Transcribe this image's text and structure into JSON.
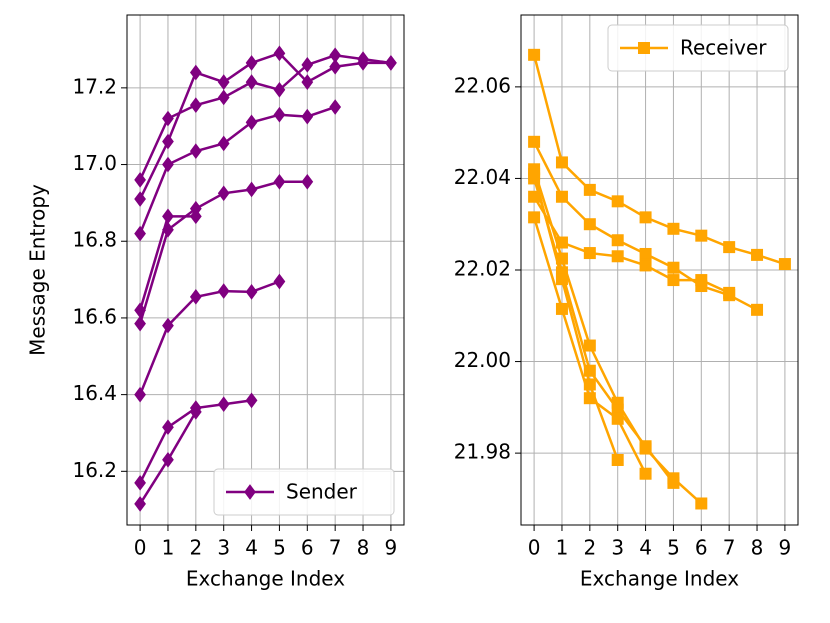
{
  "chart_data": [
    {
      "type": "line",
      "ylabel": "Message Entropy",
      "xlabel": "Exchange Index",
      "x": [
        0,
        1,
        2,
        3,
        4,
        5,
        6,
        7,
        8,
        9
      ],
      "color": "#800080",
      "marker": "diamond",
      "legend": {
        "label": "Sender",
        "loc": "lower right"
      },
      "series": [
        {
          "values": [
            16.96,
            17.12,
            17.155,
            17.175,
            17.215,
            17.195,
            17.26,
            17.285,
            17.275,
            17.265
          ]
        },
        {
          "values": [
            16.91,
            17.06,
            17.24,
            17.215,
            17.265,
            17.29,
            17.215,
            17.255,
            17.265,
            17.265
          ]
        },
        {
          "values": [
            16.82,
            17.0,
            17.035,
            17.055,
            17.11,
            17.13,
            17.125,
            17.15,
            null,
            null
          ]
        },
        {
          "values": [
            16.585,
            16.83,
            16.885,
            16.925,
            16.935,
            16.955,
            16.955,
            null,
            null,
            null
          ]
        },
        {
          "values": [
            16.62,
            16.865,
            16.865,
            null,
            null,
            null,
            null,
            null,
            null,
            null
          ]
        },
        {
          "values": [
            16.4,
            16.58,
            16.655,
            16.67,
            16.668,
            16.695,
            null,
            null,
            null,
            null
          ]
        },
        {
          "values": [
            16.17,
            16.315,
            16.365,
            16.375,
            16.385,
            null,
            null,
            null,
            null,
            null
          ]
        },
        {
          "values": [
            16.115,
            16.23,
            16.355,
            null,
            null,
            null,
            null,
            null,
            null,
            null
          ]
        }
      ],
      "xlim": [
        -0.47,
        9.47
      ],
      "xticks": [
        0,
        1,
        2,
        3,
        4,
        5,
        6,
        7,
        8,
        9
      ],
      "ylim": [
        16.06,
        17.39
      ],
      "yticks": [
        16.2,
        16.4,
        16.6,
        16.8,
        {
          "value": 17,
          "label": "17.0"
        },
        17.2
      ],
      "grid": true
    },
    {
      "type": "line",
      "xlabel": "Exchange Index",
      "x": [
        0,
        1,
        2,
        3,
        4,
        5,
        6,
        7,
        8,
        9
      ],
      "color": "#ffa500",
      "marker": "square",
      "legend": {
        "label": "Receiver",
        "loc": "upper right"
      },
      "series": [
        {
          "values": [
            22.067,
            22.0435,
            22.0375,
            22.035,
            22.0315,
            22.029,
            22.0275,
            22.025,
            22.0233,
            22.0213
          ]
        },
        {
          "values": [
            22.048,
            22.036,
            22.03,
            22.0265,
            22.0235,
            22.0205,
            22.0165,
            22.0145,
            22.0113,
            null
          ]
        },
        {
          "values": [
            22.036,
            22.026,
            22.0237,
            22.023,
            22.021,
            22.0178,
            22.0178,
            22.015,
            null,
            null
          ]
        },
        {
          "values": [
            22.042,
            22.0225,
            22.0035,
            21.991,
            21.981,
            21.9745,
            21.969,
            null,
            null,
            null
          ]
        },
        {
          "values": [
            22.04,
            22.0195,
            21.998,
            21.9895,
            21.9815,
            21.9735,
            null,
            null,
            null,
            null
          ]
        },
        {
          "values": [
            22.0315,
            22.0115,
            21.992,
            21.9875,
            21.9755,
            null,
            null,
            null,
            null,
            null
          ]
        },
        {
          "values": [
            22.041,
            22.018,
            21.995,
            21.9785,
            null,
            null,
            null,
            null,
            null,
            null
          ]
        }
      ],
      "xlim": [
        -0.47,
        9.47
      ],
      "xticks": [
        0,
        1,
        2,
        3,
        4,
        5,
        6,
        7,
        8,
        9
      ],
      "ylim": [
        21.9643,
        22.0757
      ],
      "yticks": [
        21.98,
        {
          "value": 22,
          "label": "22.00"
        },
        22.02,
        22.04,
        22.06
      ],
      "grid": true
    }
  ]
}
